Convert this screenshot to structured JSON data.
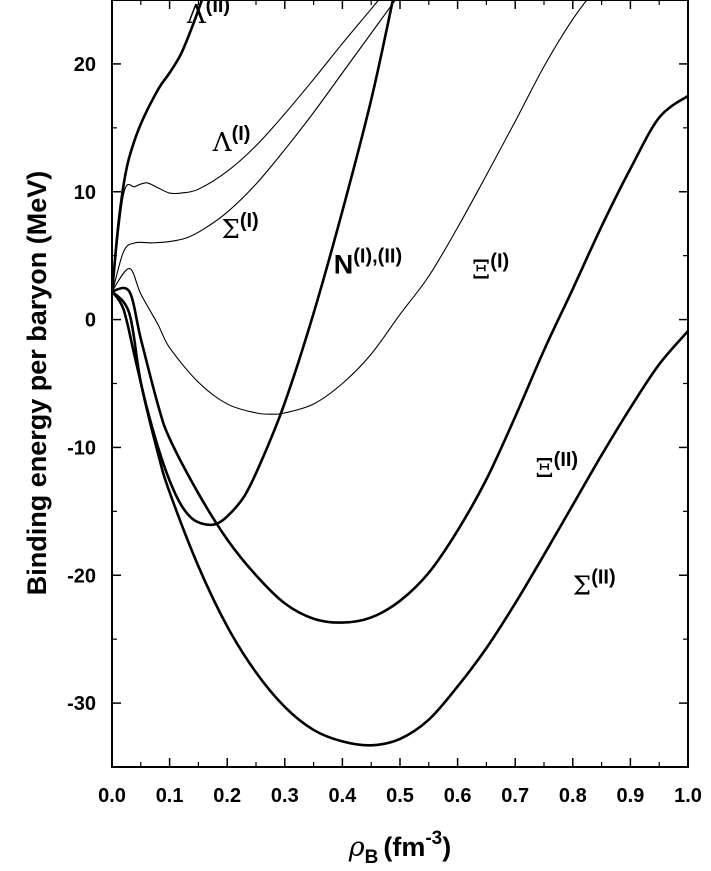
{
  "chart_data": {
    "type": "line",
    "title": "",
    "xlabel": {
      "symbol": "ρ",
      "sub": "B",
      "unit": "(fm",
      "exp": "-3",
      "close": ")"
    },
    "ylabel": "Binding energy per baryon (MeV)",
    "xlim": [
      0.0,
      1.0
    ],
    "ylim": [
      -35,
      25
    ],
    "xticks": [
      0.0,
      0.1,
      0.2,
      0.3,
      0.4,
      0.5,
      0.6,
      0.7,
      0.8,
      0.9,
      1.0
    ],
    "xtick_labels": [
      "0.0",
      "0.1",
      "0.2",
      "0.3",
      "0.4",
      "0.5",
      "0.6",
      "0.7",
      "0.8",
      "0.9",
      "1.0"
    ],
    "yticks": [
      20,
      10,
      0,
      -10,
      -20,
      -30
    ],
    "ytick_labels": [
      "20",
      "10",
      "0",
      "-10",
      "-20",
      "-30"
    ],
    "grid": false,
    "legend": "none",
    "series": [
      {
        "name": "Λ(II)",
        "label_base": "Λ",
        "label_sup": "(II)",
        "style": "thick",
        "x": [
          0.0,
          0.01,
          0.02,
          0.03,
          0.05,
          0.08,
          0.1,
          0.12,
          0.14,
          0.16
        ],
        "y": [
          2.0,
          7.0,
          10.5,
          12.7,
          15.3,
          18.0,
          19.3,
          20.8,
          23.0,
          25.5
        ]
      },
      {
        "name": "Λ(I)",
        "label_base": "Λ",
        "label_sup": "(I)",
        "style": "thin",
        "x": [
          0.0,
          0.02,
          0.04,
          0.06,
          0.08,
          0.1,
          0.12,
          0.15,
          0.2,
          0.25,
          0.3,
          0.35,
          0.4,
          0.45,
          0.49
        ],
        "y": [
          2.0,
          9.8,
          10.4,
          10.7,
          10.3,
          9.9,
          9.9,
          10.2,
          11.6,
          13.6,
          16.1,
          18.8,
          21.6,
          24.3,
          26.5
        ]
      },
      {
        "name": "Σ(I)",
        "label_base": "Σ",
        "label_sup": "(I)",
        "style": "thin",
        "x": [
          0.0,
          0.02,
          0.04,
          0.07,
          0.1,
          0.13,
          0.16,
          0.2,
          0.25,
          0.3,
          0.35,
          0.4,
          0.45,
          0.5
        ],
        "y": [
          2.0,
          5.3,
          6.0,
          6.0,
          6.1,
          6.4,
          7.1,
          8.4,
          10.6,
          13.3,
          16.2,
          19.3,
          22.4,
          25.5
        ]
      },
      {
        "name": "N(I),(II)",
        "label_base": "N",
        "label_sup": "(I),(II)",
        "style": "thick",
        "x": [
          0.0,
          0.02,
          0.04,
          0.06,
          0.08,
          0.1,
          0.12,
          0.14,
          0.16,
          0.18,
          0.2,
          0.23,
          0.26,
          0.3,
          0.35,
          0.4,
          0.45,
          0.49
        ],
        "y": [
          2.2,
          0.8,
          -3.0,
          -6.8,
          -10.0,
          -12.6,
          -14.5,
          -15.6,
          -16.0,
          -16.0,
          -15.4,
          -13.8,
          -11.0,
          -6.5,
          0.5,
          8.5,
          17.2,
          25.5
        ]
      },
      {
        "name": "Ξ(I)",
        "label_base": "Ξ",
        "label_sup": "(I)",
        "style": "thin",
        "x": [
          0.0,
          0.03,
          0.05,
          0.08,
          0.1,
          0.15,
          0.2,
          0.25,
          0.28,
          0.3,
          0.35,
          0.4,
          0.45,
          0.5,
          0.55,
          0.6,
          0.65,
          0.7,
          0.75,
          0.8,
          0.85
        ],
        "y": [
          2.2,
          4.0,
          2.0,
          -0.4,
          -2.2,
          -4.9,
          -6.6,
          -7.3,
          -7.4,
          -7.3,
          -6.6,
          -5.0,
          -2.7,
          0.4,
          3.4,
          7.2,
          11.3,
          15.5,
          19.8,
          23.5,
          26.5
        ]
      },
      {
        "name": "Ξ(II)",
        "label_base": "Ξ",
        "label_sup": "(II)",
        "style": "thick",
        "x": [
          0.0,
          0.03,
          0.05,
          0.08,
          0.1,
          0.15,
          0.2,
          0.25,
          0.3,
          0.35,
          0.4,
          0.45,
          0.5,
          0.55,
          0.6,
          0.65,
          0.7,
          0.75,
          0.8,
          0.85,
          0.9,
          0.95,
          1.0
        ],
        "y": [
          2.2,
          2.2,
          -1.5,
          -6.7,
          -9.3,
          -13.6,
          -17.2,
          -20.0,
          -22.2,
          -23.4,
          -23.7,
          -23.3,
          -22.0,
          -19.8,
          -16.5,
          -12.5,
          -7.6,
          -2.4,
          2.4,
          7.3,
          11.8,
          15.8,
          17.5
        ]
      },
      {
        "name": "Σ(II)",
        "label_base": "Σ",
        "label_sup": "(II)",
        "style": "thick",
        "x": [
          0.0,
          0.03,
          0.05,
          0.08,
          0.1,
          0.15,
          0.2,
          0.25,
          0.3,
          0.35,
          0.4,
          0.45,
          0.5,
          0.55,
          0.6,
          0.65,
          0.7,
          0.75,
          0.8,
          0.85,
          0.9,
          0.95,
          1.0
        ],
        "y": [
          2.2,
          0.5,
          -4.9,
          -10.5,
          -13.5,
          -19.3,
          -24.0,
          -27.6,
          -30.3,
          -32.1,
          -33.0,
          -33.3,
          -32.8,
          -31.3,
          -28.7,
          -25.7,
          -22.2,
          -18.4,
          -14.5,
          -10.6,
          -6.9,
          -3.5,
          -0.9
        ]
      }
    ],
    "annotations": [
      {
        "series": 0,
        "x": 0.13,
        "y": 23.2
      },
      {
        "series": 1,
        "x": 0.175,
        "y": 13.2
      },
      {
        "series": 2,
        "x": 0.19,
        "y": 6.4
      },
      {
        "series": 3,
        "x": 0.385,
        "y": 3.6
      },
      {
        "series": 4,
        "x": 0.625,
        "y": 3.2
      },
      {
        "series": 5,
        "x": 0.735,
        "y": -12.3
      },
      {
        "series": 6,
        "x": 0.8,
        "y": -21.5
      }
    ]
  }
}
